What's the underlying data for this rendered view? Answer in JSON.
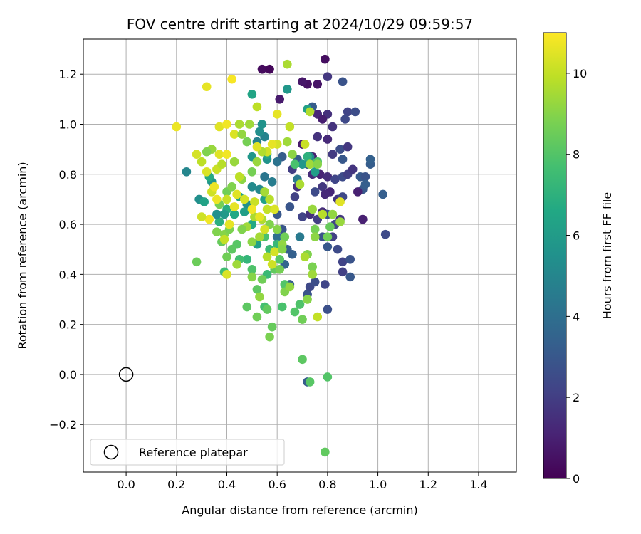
{
  "chart_data": {
    "type": "scatter",
    "title": "FOV centre drift starting at 2024/10/29 09:59:57",
    "xlabel": "Angular distance from reference (arcmin)",
    "ylabel": "Rotation from reference (arcmin)",
    "xlim": [
      -0.17,
      1.55
    ],
    "ylim": [
      -0.39,
      1.34
    ],
    "xticks": [
      0.0,
      0.2,
      0.4,
      0.6,
      0.8,
      1.0,
      1.2,
      1.4
    ],
    "xtick_labels": [
      "0.0",
      "0.2",
      "0.4",
      "0.6",
      "0.8",
      "1.0",
      "1.2",
      "1.4"
    ],
    "yticks": [
      -0.2,
      0.0,
      0.2,
      0.4,
      0.6,
      0.8,
      1.0,
      1.2
    ],
    "ytick_labels": [
      "−0.2",
      "0.0",
      "0.2",
      "0.4",
      "0.6",
      "0.8",
      "1.0",
      "1.2"
    ],
    "grid": true,
    "colorbar": {
      "label": "Hours from first FF file",
      "min": 0,
      "max": 11,
      "colormap": "viridis",
      "ticks": [
        0,
        2,
        4,
        6,
        8,
        10
      ],
      "tick_labels": [
        "0",
        "2",
        "4",
        "6",
        "8",
        "10"
      ]
    },
    "legend": {
      "placement": "lower-left",
      "entries": [
        "Reference platepar"
      ]
    },
    "reference_point": {
      "x": 0.0,
      "y": 0.0
    },
    "points": [
      [
        0.54,
        1.22,
        0.3
      ],
      [
        0.57,
        1.22,
        0.2
      ],
      [
        0.79,
        1.26,
        0.4
      ],
      [
        0.72,
        1.16,
        0.5
      ],
      [
        0.76,
        1.16,
        0.6
      ],
      [
        0.8,
        1.19,
        1.8
      ],
      [
        0.86,
        1.17,
        2.8
      ],
      [
        0.61,
        1.1,
        0.8
      ],
      [
        0.7,
        1.17,
        0.7
      ],
      [
        0.74,
        1.07,
        3.2
      ],
      [
        0.76,
        1.04,
        1.2
      ],
      [
        0.8,
        1.04,
        1.5
      ],
      [
        0.82,
        0.99,
        1.6
      ],
      [
        0.78,
        1.02,
        0.9
      ],
      [
        0.88,
        1.05,
        2.2
      ],
      [
        0.91,
        1.05,
        2.6
      ],
      [
        0.87,
        1.02,
        2.4
      ],
      [
        0.7,
        0.92,
        0.8
      ],
      [
        0.74,
        0.87,
        0.9
      ],
      [
        0.76,
        0.95,
        1.6
      ],
      [
        0.8,
        0.94,
        1.3
      ],
      [
        0.82,
        0.88,
        1.9
      ],
      [
        0.85,
        0.9,
        2.6
      ],
      [
        0.88,
        0.91,
        1.8
      ],
      [
        0.86,
        0.86,
        3.0
      ],
      [
        0.66,
        0.82,
        2.0
      ],
      [
        0.68,
        0.86,
        3.2
      ],
      [
        0.72,
        0.84,
        2.9
      ],
      [
        0.74,
        0.8,
        1.4
      ],
      [
        0.77,
        0.8,
        1.1
      ],
      [
        0.8,
        0.79,
        1.4
      ],
      [
        0.83,
        0.78,
        2.3
      ],
      [
        0.86,
        0.79,
        2.5
      ],
      [
        0.88,
        0.8,
        2.0
      ],
      [
        0.9,
        0.82,
        1.7
      ],
      [
        0.93,
        0.79,
        3.1
      ],
      [
        0.95,
        0.79,
        2.8
      ],
      [
        0.97,
        0.84,
        3.2
      ],
      [
        0.97,
        0.86,
        3.4
      ],
      [
        0.94,
        0.74,
        3.0
      ],
      [
        0.95,
        0.76,
        3.3
      ],
      [
        0.92,
        0.73,
        1.0
      ],
      [
        0.75,
        0.73,
        2.5
      ],
      [
        0.78,
        0.75,
        1.8
      ],
      [
        0.81,
        0.73,
        1.2
      ],
      [
        0.84,
        0.7,
        1.7
      ],
      [
        0.86,
        0.71,
        2.4
      ],
      [
        0.79,
        0.72,
        1.3
      ],
      [
        0.7,
        0.63,
        2.2
      ],
      [
        0.73,
        0.64,
        1.5
      ],
      [
        0.76,
        0.62,
        2.0
      ],
      [
        0.78,
        0.65,
        1.4
      ],
      [
        0.8,
        0.64,
        2.7
      ],
      [
        0.83,
        0.6,
        2.3
      ],
      [
        0.85,
        0.62,
        1.8
      ],
      [
        0.82,
        0.55,
        2.1
      ],
      [
        0.78,
        0.55,
        2.8
      ],
      [
        0.8,
        0.51,
        3.0
      ],
      [
        0.84,
        0.5,
        2.5
      ],
      [
        0.86,
        0.45,
        2.2
      ],
      [
        0.89,
        0.46,
        2.8
      ],
      [
        0.72,
        0.32,
        2.8
      ],
      [
        0.73,
        0.35,
        2.4
      ],
      [
        0.75,
        0.37,
        2.6
      ],
      [
        0.79,
        0.36,
        2.3
      ],
      [
        0.8,
        0.26,
        2.7
      ],
      [
        0.86,
        0.41,
        2.1
      ],
      [
        0.89,
        0.39,
        3.0
      ],
      [
        0.72,
        -0.03,
        3.2
      ],
      [
        0.94,
        0.62,
        1.0
      ],
      [
        1.02,
        0.72,
        3.3
      ],
      [
        1.03,
        0.56,
        2.5
      ],
      [
        0.65,
        0.67,
        2.9
      ],
      [
        0.67,
        0.71,
        2.1
      ],
      [
        0.68,
        0.75,
        1.5
      ],
      [
        0.62,
        0.58,
        2.9
      ],
      [
        0.6,
        0.64,
        3.0
      ],
      [
        0.66,
        0.48,
        3.4
      ],
      [
        0.63,
        0.44,
        3.6
      ],
      [
        0.64,
        0.5,
        3.3
      ],
      [
        0.6,
        0.55,
        4.0
      ],
      [
        0.65,
        0.36,
        3.2
      ],
      [
        0.69,
        0.55,
        4.5
      ],
      [
        0.62,
        0.87,
        3.2
      ],
      [
        0.6,
        0.85,
        4.2
      ],
      [
        0.58,
        0.77,
        4.6
      ],
      [
        0.55,
        0.79,
        4.3
      ],
      [
        0.56,
        0.86,
        5.6
      ],
      [
        0.55,
        0.95,
        4.9
      ],
      [
        0.53,
        0.97,
        5.4
      ],
      [
        0.52,
        0.93,
        4.8
      ],
      [
        0.5,
        0.87,
        5.8
      ],
      [
        0.54,
        1.0,
        5.6
      ],
      [
        0.64,
        1.14,
        5.8
      ],
      [
        0.72,
        1.06,
        6.2
      ],
      [
        0.5,
        1.12,
        6.4
      ],
      [
        0.55,
        0.7,
        6.2
      ],
      [
        0.53,
        0.74,
        5.1
      ],
      [
        0.5,
        0.75,
        5.2
      ],
      [
        0.48,
        0.68,
        5.4
      ],
      [
        0.45,
        0.71,
        6.4
      ],
      [
        0.47,
        0.65,
        6.1
      ],
      [
        0.43,
        0.64,
        6.6
      ],
      [
        0.4,
        0.66,
        6.8
      ],
      [
        0.39,
        0.64,
        5.9
      ],
      [
        0.37,
        0.61,
        6.9
      ],
      [
        0.36,
        0.64,
        5.5
      ],
      [
        0.34,
        0.77,
        5.7
      ],
      [
        0.33,
        0.79,
        6.7
      ],
      [
        0.29,
        0.7,
        5.4
      ],
      [
        0.31,
        0.69,
        6.3
      ],
      [
        0.24,
        0.81,
        5.0
      ],
      [
        0.56,
        0.88,
        6.4
      ],
      [
        0.7,
        0.84,
        5.8
      ],
      [
        0.75,
        0.81,
        6.1
      ],
      [
        0.73,
        0.87,
        5.2
      ],
      [
        0.68,
        0.78,
        4.5
      ],
      [
        0.67,
        0.84,
        7.8
      ],
      [
        0.72,
        0.87,
        7.0
      ],
      [
        0.76,
        0.85,
        7.9
      ],
      [
        0.5,
        0.6,
        6.6
      ],
      [
        0.52,
        0.52,
        6.2
      ],
      [
        0.55,
        0.55,
        7.8
      ],
      [
        0.57,
        0.5,
        7.4
      ],
      [
        0.6,
        0.52,
        7.3
      ],
      [
        0.61,
        0.46,
        8.1
      ],
      [
        0.59,
        0.42,
        8.3
      ],
      [
        0.56,
        0.4,
        7.4
      ],
      [
        0.54,
        0.38,
        8.6
      ],
      [
        0.52,
        0.34,
        8.2
      ],
      [
        0.5,
        0.42,
        7.9
      ],
      [
        0.48,
        0.46,
        7.2
      ],
      [
        0.45,
        0.46,
        7.6
      ],
      [
        0.44,
        0.52,
        8.1
      ],
      [
        0.42,
        0.5,
        8.2
      ],
      [
        0.4,
        0.47,
        8.6
      ],
      [
        0.39,
        0.41,
        7.6
      ],
      [
        0.38,
        0.53,
        8.4
      ],
      [
        0.36,
        0.57,
        8.9
      ],
      [
        0.39,
        0.56,
        9.0
      ],
      [
        0.41,
        0.58,
        8.8
      ],
      [
        0.37,
        0.68,
        8.7
      ],
      [
        0.4,
        0.73,
        8.6
      ],
      [
        0.42,
        0.75,
        8.9
      ],
      [
        0.46,
        0.78,
        9.1
      ],
      [
        0.5,
        0.81,
        8.7
      ],
      [
        0.52,
        0.85,
        9.3
      ],
      [
        0.48,
        0.59,
        9.4
      ],
      [
        0.51,
        0.63,
        9.6
      ],
      [
        0.54,
        0.62,
        9.7
      ],
      [
        0.57,
        0.6,
        8.9
      ],
      [
        0.6,
        0.58,
        9.0
      ],
      [
        0.63,
        0.55,
        8.6
      ],
      [
        0.62,
        0.52,
        9.2
      ],
      [
        0.56,
        0.66,
        10.0
      ],
      [
        0.59,
        0.66,
        10.4
      ],
      [
        0.57,
        0.7,
        9.8
      ],
      [
        0.55,
        0.73,
        9.5
      ],
      [
        0.51,
        0.69,
        10.1
      ],
      [
        0.53,
        0.63,
        10.6
      ],
      [
        0.5,
        0.66,
        10.8
      ],
      [
        0.47,
        0.7,
        10.3
      ],
      [
        0.44,
        0.72,
        10.5
      ],
      [
        0.43,
        0.67,
        10.6
      ],
      [
        0.4,
        0.7,
        10.1
      ],
      [
        0.36,
        0.7,
        10.7
      ],
      [
        0.34,
        0.73,
        10.2
      ],
      [
        0.33,
        0.62,
        10.8
      ],
      [
        0.3,
        0.63,
        10.2
      ],
      [
        0.3,
        0.85,
        9.9
      ],
      [
        0.32,
        0.81,
        10.4
      ],
      [
        0.35,
        0.75,
        10.7
      ],
      [
        0.36,
        0.82,
        10.1
      ],
      [
        0.37,
        0.88,
        10.5
      ],
      [
        0.4,
        0.88,
        10.8
      ],
      [
        0.38,
        0.84,
        9.8
      ],
      [
        0.34,
        0.9,
        9.3
      ],
      [
        0.32,
        0.89,
        8.9
      ],
      [
        0.28,
        0.88,
        10.3
      ],
      [
        0.2,
        0.99,
        10.7
      ],
      [
        0.37,
        0.99,
        10.5
      ],
      [
        0.4,
        1.0,
        10.8
      ],
      [
        0.43,
        0.96,
        10.4
      ],
      [
        0.45,
        1.0,
        9.6
      ],
      [
        0.46,
        0.96,
        9.2
      ],
      [
        0.49,
        1.0,
        9.4
      ],
      [
        0.52,
        1.07,
        9.9
      ],
      [
        0.6,
        1.04,
        10.6
      ],
      [
        0.65,
        0.99,
        10.0
      ],
      [
        0.64,
        0.93,
        9.4
      ],
      [
        0.6,
        0.92,
        10.3
      ],
      [
        0.58,
        0.92,
        10.6
      ],
      [
        0.56,
        0.89,
        10.2
      ],
      [
        0.54,
        0.89,
        9.7
      ],
      [
        0.52,
        0.91,
        10.5
      ],
      [
        0.48,
        0.93,
        8.7
      ],
      [
        0.43,
        0.85,
        9.3
      ],
      [
        0.45,
        0.79,
        9.9
      ],
      [
        0.32,
        1.15,
        10.6
      ],
      [
        0.42,
        1.18,
        10.9
      ],
      [
        0.64,
        1.24,
        9.6
      ],
      [
        0.73,
        1.05,
        9.7
      ],
      [
        0.71,
        0.92,
        10.1
      ],
      [
        0.66,
        0.88,
        9.1
      ],
      [
        0.73,
        0.84,
        9.4
      ],
      [
        0.69,
        0.76,
        9.6
      ],
      [
        0.76,
        0.84,
        9.0
      ],
      [
        0.74,
        0.66,
        9.3
      ],
      [
        0.78,
        0.64,
        9.8
      ],
      [
        0.82,
        0.64,
        9.2
      ],
      [
        0.85,
        0.69,
        10.5
      ],
      [
        0.85,
        0.61,
        9.3
      ],
      [
        0.81,
        0.59,
        8.4
      ],
      [
        0.8,
        0.55,
        8.6
      ],
      [
        0.75,
        0.58,
        8.7
      ],
      [
        0.75,
        0.55,
        9.1
      ],
      [
        0.72,
        0.48,
        8.9
      ],
      [
        0.71,
        0.47,
        9.6
      ],
      [
        0.74,
        0.43,
        8.8
      ],
      [
        0.74,
        0.4,
        9.4
      ],
      [
        0.72,
        0.3,
        9.0
      ],
      [
        0.76,
        0.23,
        10.0
      ],
      [
        0.63,
        0.36,
        8.0
      ],
      [
        0.63,
        0.33,
        8.9
      ],
      [
        0.65,
        0.35,
        9.2
      ],
      [
        0.67,
        0.25,
        8.0
      ],
      [
        0.69,
        0.28,
        7.9
      ],
      [
        0.7,
        0.22,
        8.6
      ],
      [
        0.62,
        0.27,
        7.8
      ],
      [
        0.55,
        0.27,
        7.7
      ],
      [
        0.56,
        0.26,
        8.3
      ],
      [
        0.58,
        0.19,
        8.4
      ],
      [
        0.57,
        0.15,
        8.8
      ],
      [
        0.52,
        0.23,
        8.6
      ],
      [
        0.48,
        0.27,
        8.2
      ],
      [
        0.28,
        0.45,
        8.5
      ],
      [
        0.7,
        0.06,
        8.2
      ],
      [
        0.8,
        -0.01,
        8.0
      ],
      [
        0.73,
        -0.03,
        8.1
      ],
      [
        0.79,
        -0.31,
        8.3
      ],
      [
        0.61,
        0.42,
        8.7
      ],
      [
        0.53,
        0.31,
        9.2
      ],
      [
        0.5,
        0.39,
        9.0
      ],
      [
        0.56,
        0.47,
        9.8
      ],
      [
        0.58,
        0.44,
        10.2
      ],
      [
        0.59,
        0.49,
        10.3
      ],
      [
        0.62,
        0.5,
        9.0
      ],
      [
        0.55,
        0.58,
        10.3
      ],
      [
        0.53,
        0.55,
        9.5
      ],
      [
        0.5,
        0.53,
        9.1
      ],
      [
        0.46,
        0.58,
        8.9
      ],
      [
        0.44,
        0.44,
        9.4
      ],
      [
        0.4,
        0.4,
        10.4
      ],
      [
        0.39,
        0.54,
        10.0
      ],
      [
        0.41,
        0.6,
        10.6
      ]
    ]
  }
}
